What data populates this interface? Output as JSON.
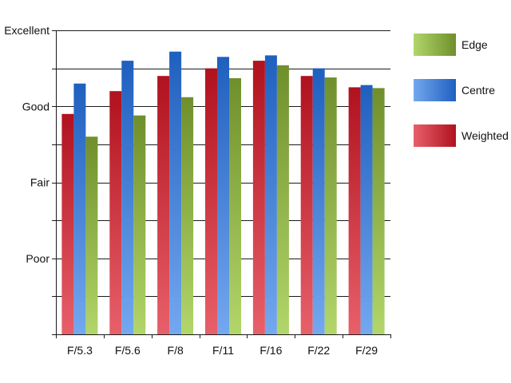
{
  "chart_data": {
    "type": "bar",
    "categories": [
      "F/5.3",
      "F/5.6",
      "F/8",
      "F/11",
      "F/16",
      "F/22",
      "F/29"
    ],
    "y_axis": {
      "min": 0,
      "max": 4,
      "tick_labels": [
        {
          "value": 1,
          "label": "Poor"
        },
        {
          "value": 2,
          "label": "Fair"
        },
        {
          "value": 3,
          "label": "Good"
        },
        {
          "value": 4,
          "label": "Excellent"
        }
      ],
      "minor_step": 0.5
    },
    "series": [
      {
        "name": "Weighted",
        "values": [
          2.9,
          3.2,
          3.4,
          3.5,
          3.6,
          3.4,
          3.25
        ]
      },
      {
        "name": "Centre",
        "values": [
          3.3,
          3.6,
          3.72,
          3.65,
          3.67,
          3.5,
          3.28
        ]
      },
      {
        "name": "Edge",
        "values": [
          2.6,
          2.88,
          3.12,
          3.37,
          3.54,
          3.38,
          3.24
        ]
      }
    ],
    "colors": {
      "Weighted": {
        "top": "#b0121e",
        "bottom": "#e8606a"
      },
      "Centre": {
        "top": "#1f5fbf",
        "bottom": "#74a8ef"
      },
      "Edge": {
        "top": "#6f8f2c",
        "bottom": "#b2d66a"
      }
    },
    "grid": true,
    "legend_position": "right",
    "legend_order": [
      "Edge",
      "Centre",
      "Weighted"
    ]
  }
}
